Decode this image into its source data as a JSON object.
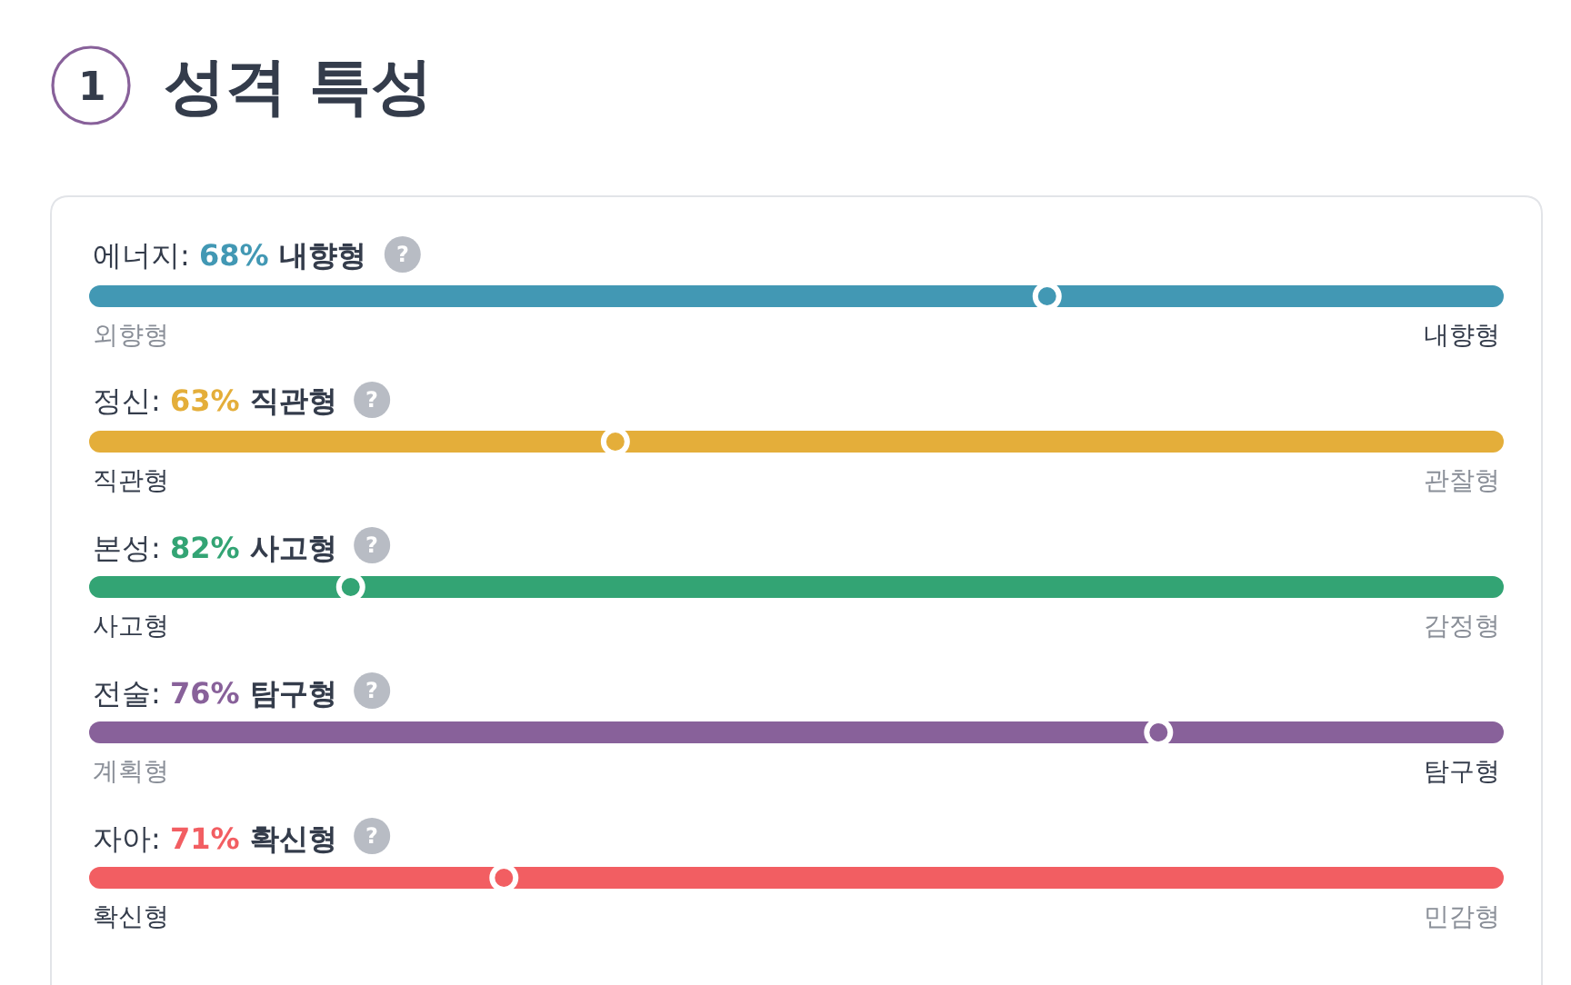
{
  "chart_data": [
    {
      "type": "other",
      "title": "성격 특성",
      "annotations": [
        "1"
      ]
    },
    {
      "type": "other",
      "title": "에너지:",
      "categories": [
        "외향형",
        "내향형"
      ],
      "values": [
        null,
        68
      ],
      "value_labels": [
        null,
        "68%"
      ],
      "color": "#4298b4",
      "annotations": [
        "?"
      ]
    },
    {
      "type": "other",
      "title": "정신:",
      "categories": [
        "직관형",
        "관찰형"
      ],
      "values": [
        63,
        null
      ],
      "value_labels": [
        "63%",
        null
      ],
      "color": "#e4ae3a",
      "annotations": [
        "?"
      ]
    },
    {
      "type": "other",
      "title": "본성:",
      "categories": [
        "사고형",
        "감정형"
      ],
      "values": [
        82,
        null
      ],
      "value_labels": [
        "82%",
        null
      ],
      "color": "#33a474",
      "annotations": [
        "?"
      ]
    },
    {
      "type": "other",
      "title": "전술:",
      "categories": [
        "계획형",
        "탐구형"
      ],
      "values": [
        null,
        76
      ],
      "value_labels": [
        null,
        "76%"
      ],
      "color": "#88619a",
      "annotations": [
        "?"
      ]
    },
    {
      "type": "other",
      "title": "자아:",
      "categories": [
        "확신형",
        "민감형"
      ],
      "values": [
        71,
        null
      ],
      "value_labels": [
        "71%",
        null
      ],
      "color": "#f25e62",
      "annotations": [
        "?"
      ]
    }
  ]
}
